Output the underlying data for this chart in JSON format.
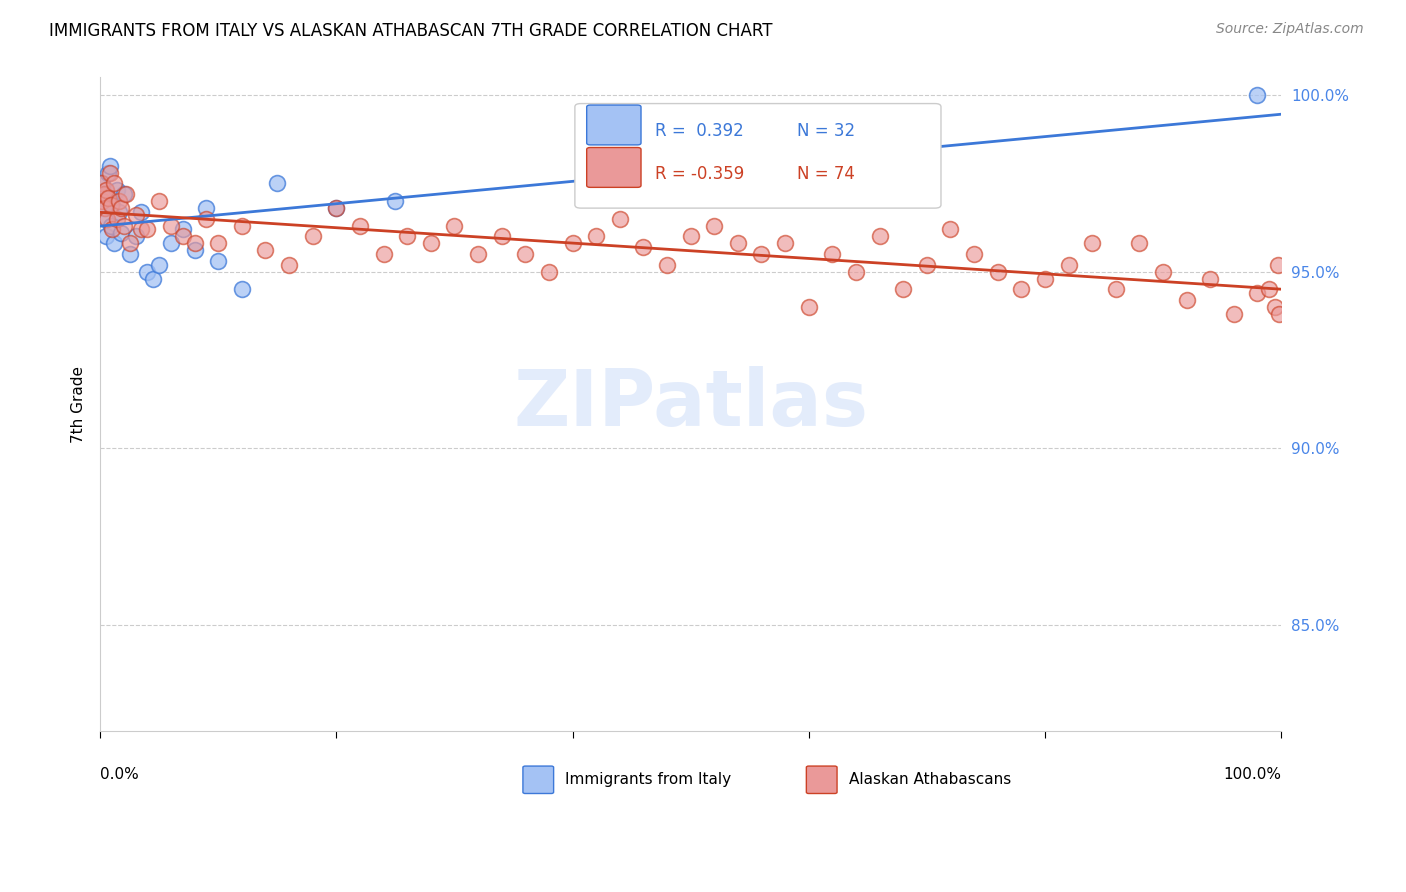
{
  "title": "IMMIGRANTS FROM ITALY VS ALASKAN ATHABASCAN 7TH GRADE CORRELATION CHART",
  "source": "Source: ZipAtlas.com",
  "ylabel": "7th Grade",
  "legend_blue_r": "R =  0.392",
  "legend_blue_n": "N = 32",
  "legend_pink_r": "R = -0.359",
  "legend_pink_n": "N = 74",
  "blue_color": "#a4c2f4",
  "pink_color": "#ea9999",
  "blue_line_color": "#3c78d8",
  "pink_line_color": "#cc4125",
  "ytick_color": "#4a86e8",
  "watermark_color": "#c9daf8",
  "xlim": [
    0.0,
    1.0
  ],
  "ylim": [
    0.82,
    1.005
  ],
  "yticks": [
    0.85,
    0.9,
    0.95,
    1.0
  ],
  "ytick_labels": [
    "85.0%",
    "90.0%",
    "95.0%",
    "100.0%"
  ],
  "blue_x": [
    0.001,
    0.002,
    0.003,
    0.003,
    0.004,
    0.005,
    0.006,
    0.007,
    0.008,
    0.009,
    0.01,
    0.012,
    0.014,
    0.016,
    0.018,
    0.02,
    0.025,
    0.03,
    0.035,
    0.04,
    0.045,
    0.05,
    0.06,
    0.07,
    0.08,
    0.09,
    0.1,
    0.12,
    0.15,
    0.2,
    0.25,
    0.98
  ],
  "blue_y": [
    0.971,
    0.975,
    0.968,
    0.972,
    0.965,
    0.96,
    0.972,
    0.978,
    0.98,
    0.963,
    0.969,
    0.958,
    0.973,
    0.967,
    0.961,
    0.972,
    0.955,
    0.96,
    0.967,
    0.95,
    0.948,
    0.952,
    0.958,
    0.962,
    0.956,
    0.968,
    0.953,
    0.945,
    0.975,
    0.968,
    0.97,
    1.0
  ],
  "pink_x": [
    0.001,
    0.002,
    0.003,
    0.004,
    0.005,
    0.006,
    0.007,
    0.008,
    0.009,
    0.01,
    0.012,
    0.014,
    0.016,
    0.018,
    0.02,
    0.022,
    0.025,
    0.03,
    0.035,
    0.04,
    0.05,
    0.06,
    0.07,
    0.08,
    0.09,
    0.1,
    0.12,
    0.14,
    0.16,
    0.18,
    0.2,
    0.22,
    0.24,
    0.26,
    0.28,
    0.3,
    0.32,
    0.34,
    0.36,
    0.38,
    0.4,
    0.42,
    0.44,
    0.46,
    0.48,
    0.5,
    0.52,
    0.54,
    0.56,
    0.58,
    0.6,
    0.62,
    0.64,
    0.66,
    0.68,
    0.7,
    0.72,
    0.74,
    0.76,
    0.78,
    0.8,
    0.82,
    0.84,
    0.86,
    0.88,
    0.9,
    0.92,
    0.94,
    0.96,
    0.98,
    0.99,
    0.995,
    0.997,
    0.998
  ],
  "pink_y": [
    0.975,
    0.97,
    0.972,
    0.968,
    0.973,
    0.965,
    0.971,
    0.978,
    0.969,
    0.962,
    0.975,
    0.965,
    0.97,
    0.968,
    0.963,
    0.972,
    0.958,
    0.966,
    0.962,
    0.962,
    0.97,
    0.963,
    0.96,
    0.958,
    0.965,
    0.958,
    0.963,
    0.956,
    0.952,
    0.96,
    0.968,
    0.963,
    0.955,
    0.96,
    0.958,
    0.963,
    0.955,
    0.96,
    0.955,
    0.95,
    0.958,
    0.96,
    0.965,
    0.957,
    0.952,
    0.96,
    0.963,
    0.958,
    0.955,
    0.958,
    0.94,
    0.955,
    0.95,
    0.96,
    0.945,
    0.952,
    0.962,
    0.955,
    0.95,
    0.945,
    0.948,
    0.952,
    0.958,
    0.945,
    0.958,
    0.95,
    0.942,
    0.948,
    0.938,
    0.944,
    0.945,
    0.94,
    0.952,
    0.938
  ]
}
